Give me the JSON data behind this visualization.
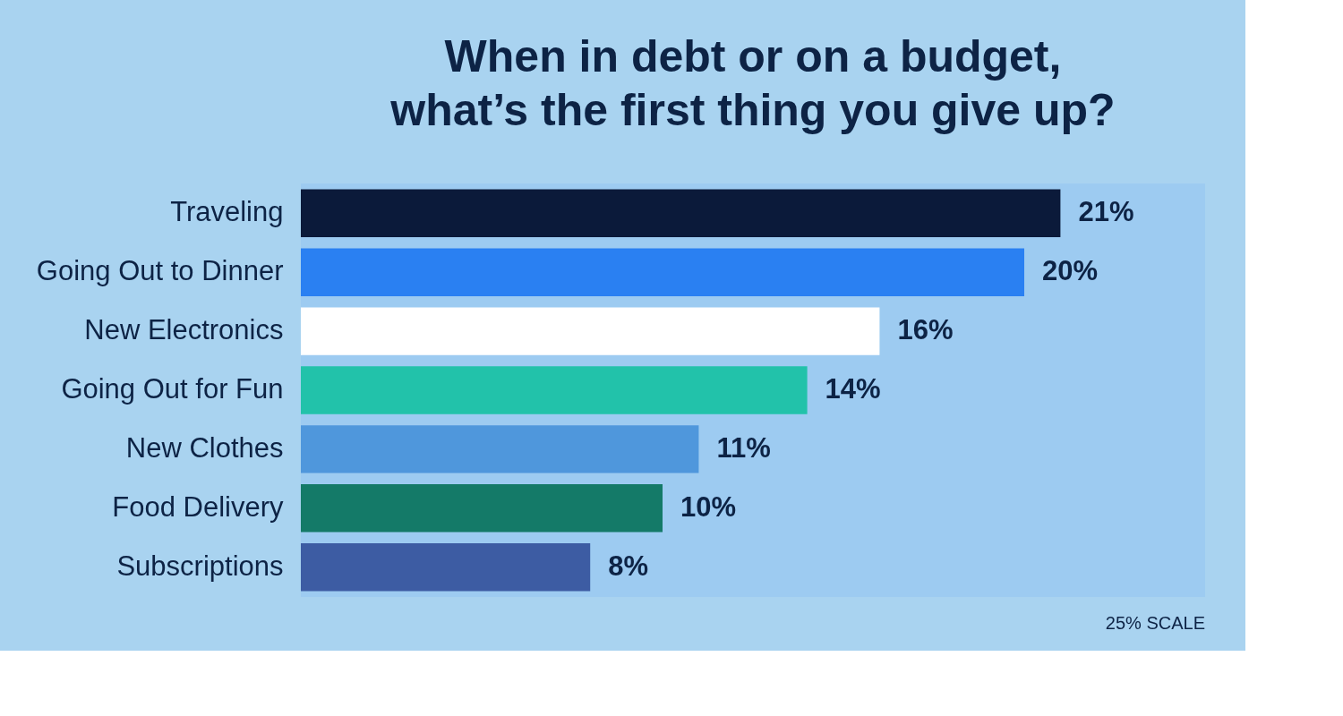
{
  "chart_data": {
    "type": "bar",
    "orientation": "horizontal",
    "title": "When in debt or on a budget, what’s the first thing you give up?",
    "categories": [
      "Traveling",
      "Going Out to Dinner",
      "New Electronics",
      "Going Out for Fun",
      "New Clothes",
      "Food Delivery",
      "Subscriptions"
    ],
    "values": [
      21,
      20,
      16,
      14,
      11,
      10,
      8
    ],
    "value_labels": [
      "21%",
      "20%",
      "16%",
      "14%",
      "11%",
      "10%",
      "8%"
    ],
    "colors": [
      "#0b1a3a",
      "#2a80f2",
      "#ffffff",
      "#22c2aa",
      "#4f97dc",
      "#147a68",
      "#3d5ca3"
    ],
    "xlim": [
      0,
      25
    ],
    "tick_labels": "y",
    "bands": [
      {
        "axis": "x",
        "from": 0,
        "to": 25,
        "color": "#9dcbf1"
      }
    ],
    "annotations": [
      "25% SCALE"
    ]
  }
}
